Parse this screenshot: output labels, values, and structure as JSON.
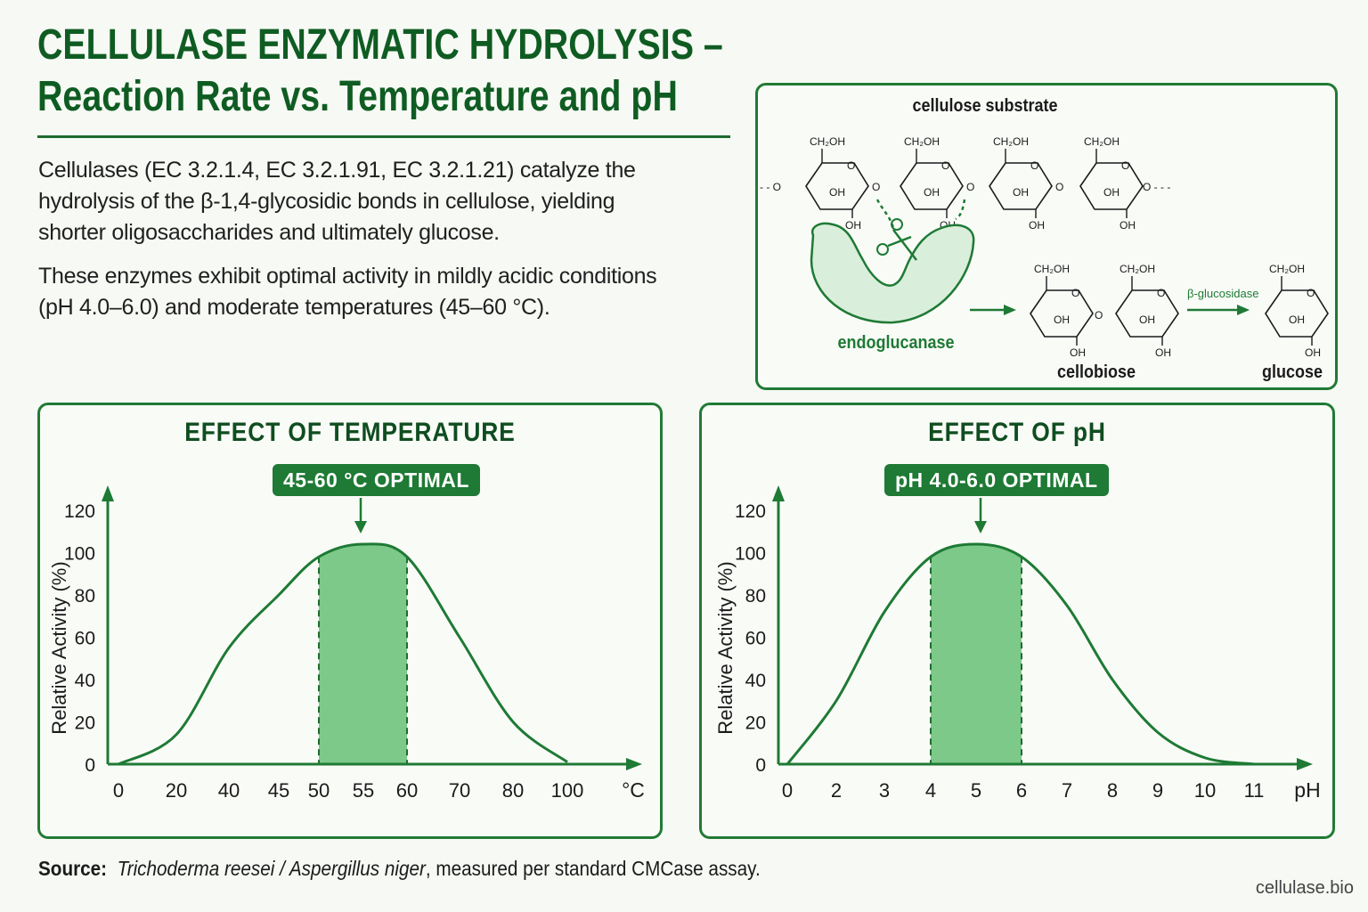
{
  "title": {
    "line1": "CELLULASE ENZYMATIC HYDROLYSIS –",
    "line2": "Reaction Rate vs. Temperature and pH"
  },
  "intro": {
    "p1": "Cellulases (EC 3.2.1.4, EC 3.2.1.91, EC 3.2.1.21) catalyze the hydrolysis of the β-1,4-glycosidic bonds in cellulose, yielding shorter oligosaccharides and ultimately glucose.",
    "p2": "These enzymes exhibit optimal activity in mildly acidic conditions (pH 4.0–6.0) and moderate temperatures (45–60 °C)."
  },
  "scheme": {
    "substrate_label": "cellulose substrate",
    "enzyme_label": "endoglucanase",
    "cellobiose_label": "cellobiose",
    "glucose_label": "glucose",
    "bglucosidase_label": "β-glucosidase",
    "ch2oh": "CH2OH",
    "oh": "OH",
    "ring_o": "O"
  },
  "colors": {
    "primary_green": "#1e7a34",
    "title_green": "#0f5c22",
    "fill_green": "#7dc98a"
  },
  "chart_data": [
    {
      "type": "area",
      "title": "EFFECT OF TEMPERATURE",
      "badge": "45-60 °C OPTIMAL",
      "ylabel": "Relative Activity (%)",
      "xunit": "°C",
      "x_ticks": [
        "0",
        "20",
        "40",
        "45",
        "50",
        "55",
        "60",
        "70",
        "80",
        "100"
      ],
      "y_ticks": [
        "0",
        "20",
        "40",
        "60",
        "80",
        "100",
        "120"
      ],
      "ylim": [
        0,
        120
      ],
      "peak": {
        "x": "55",
        "y": 104
      },
      "optimal_band": [
        "50",
        "60"
      ],
      "series": [
        {
          "x": [
            "0",
            "20",
            "40",
            "45",
            "50",
            "55",
            "60",
            "70",
            "80",
            "100"
          ],
          "values": [
            0,
            14,
            55,
            80,
            98,
            104,
            98,
            60,
            20,
            1
          ]
        }
      ]
    },
    {
      "type": "area",
      "title": "EFFECT OF pH",
      "badge": "pH 4.0-6.0 OPTIMAL",
      "ylabel": "Relative Activity (%)",
      "xunit": "pH",
      "x_ticks": [
        "0",
        "2",
        "3",
        "4",
        "5",
        "6",
        "7",
        "8",
        "9",
        "10",
        "11"
      ],
      "y_ticks": [
        "0",
        "20",
        "40",
        "60",
        "80",
        "100",
        "120"
      ],
      "ylim": [
        0,
        120
      ],
      "peak": {
        "x": "5",
        "y": 104
      },
      "optimal_band": [
        "4",
        "6"
      ],
      "series": [
        {
          "x": [
            "0",
            "2",
            "3",
            "4",
            "5",
            "6",
            "7",
            "8",
            "9",
            "10",
            "11"
          ],
          "values": [
            0,
            30,
            72,
            98,
            104,
            98,
            75,
            40,
            15,
            3,
            0
          ]
        }
      ]
    }
  ],
  "footer": {
    "source_label": "Source:",
    "organisms": "Trichoderma reesei / Aspergillus niger",
    "method": ", measured per standard CMCase assay."
  },
  "watermark": "cellulase.bio"
}
